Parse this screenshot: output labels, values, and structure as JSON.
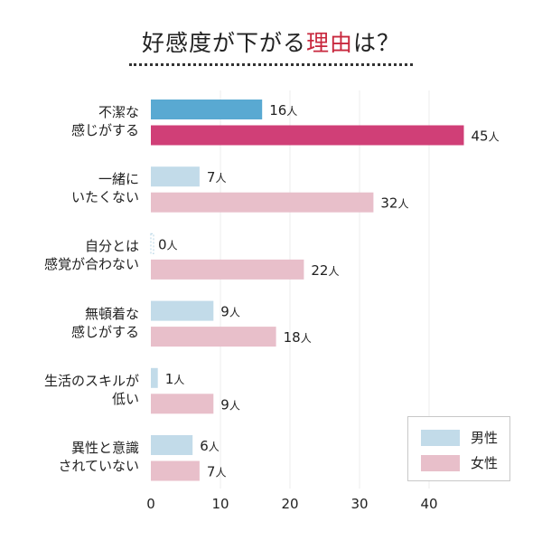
{
  "title": {
    "prefix": "好感度が下がる",
    "highlight": "理由",
    "suffix": "は？"
  },
  "colors": {
    "male_highlight": "#59a9d2",
    "female_highlight": "#d03f77",
    "male": "#c2dbe9",
    "female": "#e8bfca",
    "title_highlight": "#c8283e"
  },
  "chart_data": {
    "type": "bar",
    "orientation": "horizontal",
    "categories": [
      "不潔な\n感じがする",
      "一緒に\nいたくない",
      "自分とは\n感覚が合わない",
      "無頓着な\n感じがする",
      "生活のスキルが\n低い",
      "異性と意識\nされていない"
    ],
    "series": [
      {
        "name": "男性",
        "values": [
          16,
          7,
          0,
          9,
          1,
          6
        ]
      },
      {
        "name": "女性",
        "values": [
          45,
          32,
          22,
          18,
          9,
          7
        ]
      }
    ],
    "value_suffix": "人",
    "xlim": [
      0,
      45
    ],
    "xticks": [
      "0",
      "10",
      "20",
      "30",
      "40"
    ],
    "grid": true,
    "legend": "bottom-right",
    "highlighted_category": 0
  }
}
